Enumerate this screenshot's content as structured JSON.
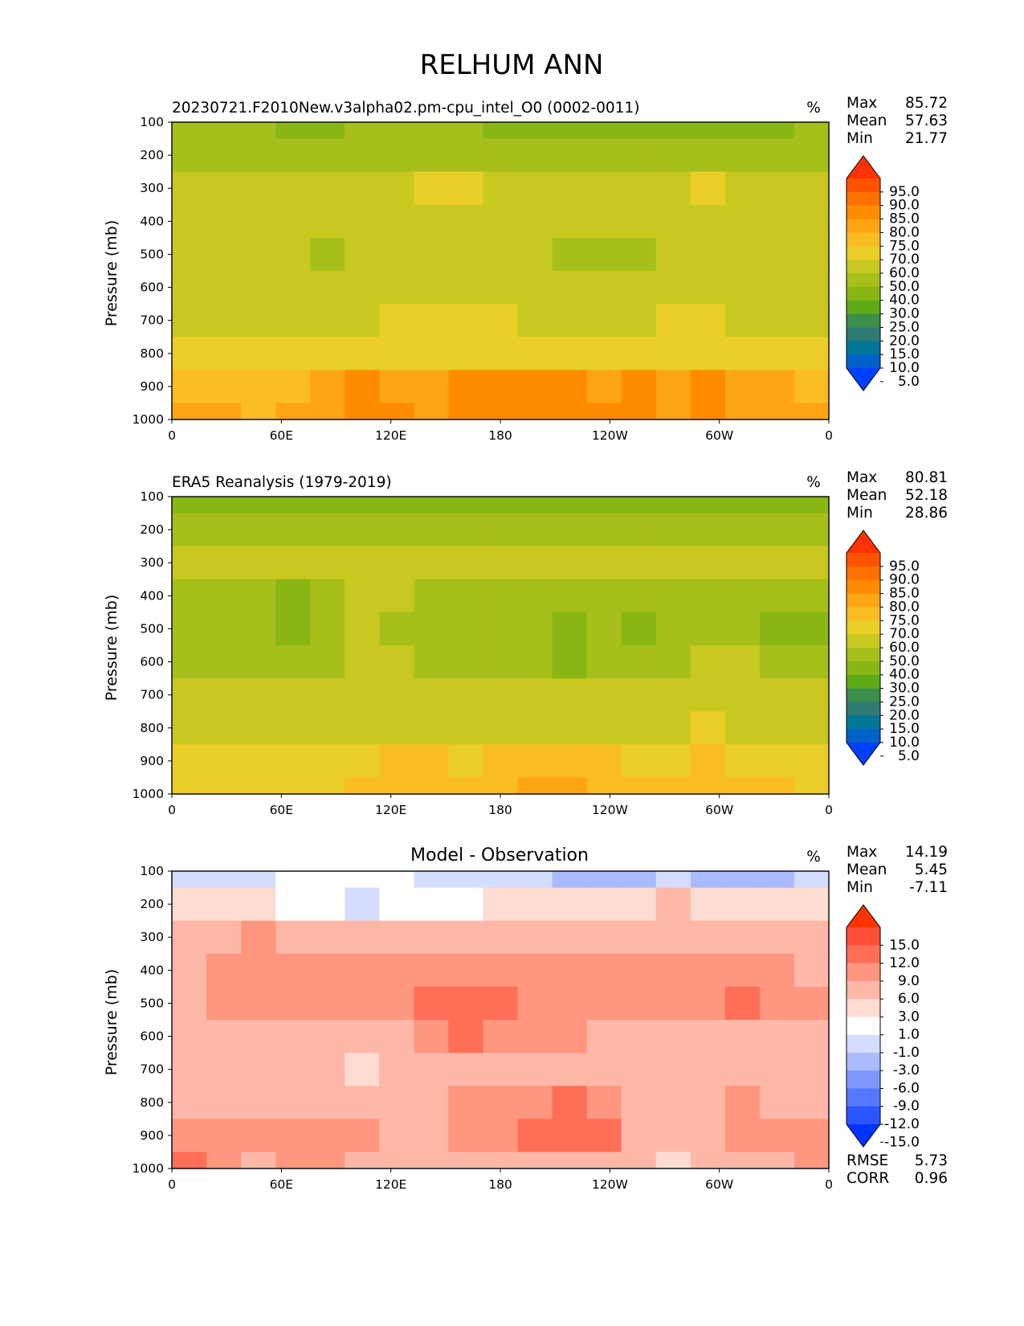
{
  "figure_title": "RELHUM ANN",
  "chart_data": [
    {
      "type": "heatmap",
      "title": "20230721.F2010New.v3alpha02.pm-cpu_intel_O0 (0002-0011)",
      "units": "%",
      "xlabel": "",
      "ylabel": "Pressure (mb)",
      "xticks": [
        "0",
        "60E",
        "120E",
        "180",
        "120W",
        "60W",
        "0"
      ],
      "yticks": [
        "100",
        "200",
        "300",
        "400",
        "500",
        "600",
        "700",
        "800",
        "900",
        "1000"
      ],
      "xlim": [
        0,
        360
      ],
      "ylim": [
        1000,
        100
      ],
      "stats": [
        {
          "label": "Max",
          "value": "85.72"
        },
        {
          "label": "Mean",
          "value": "57.63"
        },
        {
          "label": "Min",
          "value": "21.77"
        }
      ],
      "colorbar": {
        "labels": [
          "95.0",
          "90.0",
          "85.0",
          "80.0",
          "75.0",
          "70.0",
          "60.0",
          "50.0",
          "40.0",
          "30.0",
          "25.0",
          "20.0",
          "15.0",
          "10.0",
          "5.0"
        ],
        "colors": [
          "#ff3300",
          "#ff5200",
          "#ff7000",
          "#ff8c00",
          "#ffa514",
          "#fabc23",
          "#ecce28",
          "#c8c820",
          "#a7bf1b",
          "#88b714",
          "#5fab17",
          "#3c8c4a",
          "#2f7a74",
          "#007799",
          "#0062c8",
          "#0040ff"
        ]
      },
      "bands": [
        {
          "pressure": 100,
          "values": [
            42,
            41,
            40,
            39,
            39,
            40,
            40,
            41,
            40,
            39,
            37,
            35,
            34,
            36,
            36,
            38,
            36,
            35,
            40
          ]
        },
        {
          "pressure": 200,
          "values": [
            48,
            48,
            47,
            47,
            47,
            47,
            47,
            47,
            47,
            47,
            47,
            46,
            46,
            46,
            47,
            48,
            47,
            47,
            47
          ]
        },
        {
          "pressure": 300,
          "values": [
            58,
            58,
            52,
            51,
            58,
            59,
            59,
            60,
            60,
            59,
            59,
            59,
            59,
            58,
            58,
            60,
            59,
            58,
            57
          ]
        },
        {
          "pressure": 400,
          "values": [
            52,
            55,
            59,
            51,
            50,
            57,
            58,
            58,
            58,
            58,
            56,
            52,
            50,
            51,
            56,
            58,
            56,
            52,
            51
          ]
        },
        {
          "pressure": 500,
          "values": [
            50,
            55,
            58,
            50,
            49,
            56,
            58,
            58,
            58,
            58,
            54,
            49,
            48,
            49,
            54,
            58,
            55,
            50,
            50
          ]
        },
        {
          "pressure": 600,
          "values": [
            51,
            55,
            58,
            51,
            51,
            57,
            58,
            58,
            58,
            58,
            56,
            51,
            50,
            51,
            56,
            58,
            56,
            51,
            50
          ]
        },
        {
          "pressure": 700,
          "values": [
            56,
            58,
            59,
            57,
            57,
            59,
            61,
            63,
            62,
            61,
            59,
            58,
            57,
            58,
            60,
            62,
            59,
            57,
            56
          ]
        },
        {
          "pressure": 800,
          "values": [
            60,
            61,
            66,
            66,
            65,
            65,
            66,
            66,
            66,
            66,
            65,
            64,
            64,
            64,
            66,
            68,
            66,
            64,
            62
          ]
        },
        {
          "pressure": 900,
          "values": [
            72,
            74,
            73,
            74,
            77,
            80,
            78,
            76,
            80,
            82,
            82,
            81,
            78,
            80,
            79,
            80,
            76,
            78,
            74
          ]
        },
        {
          "pressure": 1000,
          "values": [
            78,
            76,
            74,
            76,
            78,
            80,
            80,
            78,
            80,
            81,
            81,
            80,
            80,
            80,
            79,
            80,
            78,
            79,
            77
          ]
        }
      ]
    },
    {
      "type": "heatmap",
      "title": "ERA5 Reanalysis (1979-2019)",
      "units": "%",
      "xlabel": "",
      "ylabel": "Pressure (mb)",
      "xticks": [
        "0",
        "60E",
        "120E",
        "180",
        "120W",
        "60W",
        "0"
      ],
      "yticks": [
        "100",
        "200",
        "300",
        "400",
        "500",
        "600",
        "700",
        "800",
        "900",
        "1000"
      ],
      "xlim": [
        0,
        360
      ],
      "ylim": [
        1000,
        100
      ],
      "stats": [
        {
          "label": "Max",
          "value": "80.81"
        },
        {
          "label": "Mean",
          "value": "52.18"
        },
        {
          "label": "Min",
          "value": "28.86"
        }
      ],
      "colorbar": {
        "labels": [
          "95.0",
          "90.0",
          "85.0",
          "80.0",
          "75.0",
          "70.0",
          "60.0",
          "50.0",
          "40.0",
          "30.0",
          "25.0",
          "20.0",
          "15.0",
          "10.0",
          "5.0"
        ],
        "colors": [
          "#ff3300",
          "#ff5200",
          "#ff7000",
          "#ff8c00",
          "#ffa514",
          "#fabc23",
          "#ecce28",
          "#c8c820",
          "#a7bf1b",
          "#88b714",
          "#5fab17",
          "#3c8c4a",
          "#2f7a74",
          "#007799",
          "#0062c8",
          "#0040ff"
        ]
      },
      "bands": [
        {
          "pressure": 100,
          "values": [
            38,
            38,
            38,
            38,
            38,
            38,
            38,
            38,
            38,
            38,
            38,
            37,
            38,
            38,
            38,
            38,
            38,
            37,
            38
          ]
        },
        {
          "pressure": 200,
          "values": [
            44,
            44,
            44,
            44,
            44,
            44,
            44,
            44,
            44,
            44,
            44,
            44,
            44,
            44,
            44,
            44,
            44,
            44,
            44
          ]
        },
        {
          "pressure": 300,
          "values": [
            50,
            50,
            50,
            50,
            52,
            56,
            53,
            50,
            50,
            50,
            50,
            50,
            50,
            50,
            52,
            56,
            55,
            50,
            50
          ]
        },
        {
          "pressure": 400,
          "values": [
            48,
            48,
            47,
            38,
            48,
            56,
            50,
            48,
            48,
            48,
            48,
            48,
            48,
            48,
            48,
            49,
            48,
            48,
            47
          ]
        },
        {
          "pressure": 500,
          "values": [
            46,
            46,
            45,
            38,
            46,
            53,
            47,
            46,
            46,
            46,
            46,
            38,
            44,
            38,
            46,
            47,
            46,
            38,
            38
          ]
        },
        {
          "pressure": 600,
          "values": [
            47,
            47,
            47,
            47,
            48,
            52,
            50,
            49,
            49,
            48,
            47,
            39,
            47,
            47,
            49,
            56,
            50,
            47,
            47
          ]
        },
        {
          "pressure": 700,
          "values": [
            52,
            52,
            52,
            51,
            50,
            54,
            56,
            56,
            54,
            52,
            51,
            50,
            50,
            50,
            52,
            57,
            56,
            52,
            51
          ]
        },
        {
          "pressure": 800,
          "values": [
            55,
            56,
            57,
            57,
            56,
            56,
            58,
            58,
            57,
            57,
            57,
            56,
            56,
            56,
            57,
            60,
            58,
            57,
            55
          ]
        },
        {
          "pressure": 900,
          "values": [
            62,
            62,
            62,
            64,
            65,
            68,
            71,
            70,
            68,
            72,
            74,
            73,
            70,
            69,
            66,
            70,
            68,
            68,
            64
          ]
        },
        {
          "pressure": 1000,
          "values": [
            65,
            65,
            64,
            66,
            68,
            71,
            72,
            71,
            70,
            73,
            76,
            75,
            72,
            70,
            70,
            72,
            70,
            71,
            66
          ]
        }
      ]
    },
    {
      "type": "heatmap",
      "title": "Model - Observation",
      "units": "%",
      "xlabel": "",
      "ylabel": "Pressure (mb)",
      "xticks": [
        "0",
        "60E",
        "120E",
        "180",
        "120W",
        "60W",
        "0"
      ],
      "yticks": [
        "100",
        "200",
        "300",
        "400",
        "500",
        "600",
        "700",
        "800",
        "900",
        "1000"
      ],
      "xlim": [
        0,
        360
      ],
      "ylim": [
        1000,
        100
      ],
      "stats": [
        {
          "label": "Max",
          "value": "14.19"
        },
        {
          "label": "Mean",
          "value": "5.45"
        },
        {
          "label": "Min",
          "value": "-7.11"
        }
      ],
      "extra_stats": [
        {
          "label": "RMSE",
          "value": "5.73"
        },
        {
          "label": "CORR",
          "value": "0.96"
        }
      ],
      "colorbar": {
        "labels": [
          "15.0",
          "12.0",
          "9.0",
          "6.0",
          "3.0",
          "1.0",
          "-1.0",
          "-3.0",
          "-6.0",
          "-9.0",
          "-12.0",
          "-15.0"
        ],
        "colors": [
          "#ff3300",
          "#ff4f38",
          "#ff6e57",
          "#ff9680",
          "#ffb8a8",
          "#ffdcd2",
          "#ffffff",
          "#d4dcff",
          "#aabaff",
          "#7f96ff",
          "#5578ff",
          "#2a55ff",
          "#0033ff"
        ]
      },
      "bands": [
        {
          "pressure": 100,
          "values": [
            -3,
            -2,
            -2,
            -1,
            -1,
            -1,
            -1,
            -2,
            -2,
            -2,
            -3,
            -4,
            -4,
            -4,
            -3,
            -4,
            -5,
            -4,
            -3
          ]
        },
        {
          "pressure": 200,
          "values": [
            1,
            2,
            2,
            0,
            -1,
            -2,
            -1,
            0,
            0,
            1,
            2,
            2,
            1,
            2,
            3,
            2,
            2,
            2,
            1
          ]
        },
        {
          "pressure": 300,
          "values": [
            4,
            5,
            6,
            5,
            3,
            4,
            4,
            4,
            4,
            4,
            4,
            4,
            4,
            4,
            3,
            4,
            4,
            5,
            4
          ]
        },
        {
          "pressure": 400,
          "values": [
            5,
            6,
            8,
            6,
            6,
            6,
            6,
            6,
            6,
            6,
            6,
            6,
            6,
            6,
            6,
            6,
            6,
            6,
            5
          ]
        },
        {
          "pressure": 500,
          "values": [
            5,
            6,
            6,
            6,
            6,
            6,
            6,
            9,
            10,
            9,
            7,
            6,
            6,
            6,
            6,
            7,
            9,
            6,
            6
          ]
        },
        {
          "pressure": 600,
          "values": [
            4,
            4,
            5,
            5,
            4,
            4,
            5,
            7,
            9,
            8,
            6,
            6,
            5,
            5,
            4,
            4,
            5,
            5,
            4
          ]
        },
        {
          "pressure": 700,
          "values": [
            3,
            3,
            4,
            3,
            3,
            2,
            3,
            4,
            5,
            5,
            5,
            5,
            5,
            5,
            4,
            3,
            3,
            4,
            3
          ]
        },
        {
          "pressure": 800,
          "values": [
            3,
            4,
            4,
            4,
            4,
            4,
            3,
            5,
            7,
            8,
            8,
            9,
            8,
            4,
            4,
            3,
            6,
            5,
            5
          ]
        },
        {
          "pressure": 900,
          "values": [
            6,
            7,
            6,
            7,
            7,
            6,
            4,
            4,
            6,
            8,
            9,
            10,
            9,
            5,
            3,
            5,
            6,
            8,
            7
          ]
        },
        {
          "pressure": 1000,
          "values": [
            9,
            8,
            5,
            6,
            6,
            4,
            3,
            3,
            4,
            5,
            5,
            5,
            4,
            3,
            2,
            3,
            4,
            5,
            6
          ]
        }
      ]
    }
  ]
}
